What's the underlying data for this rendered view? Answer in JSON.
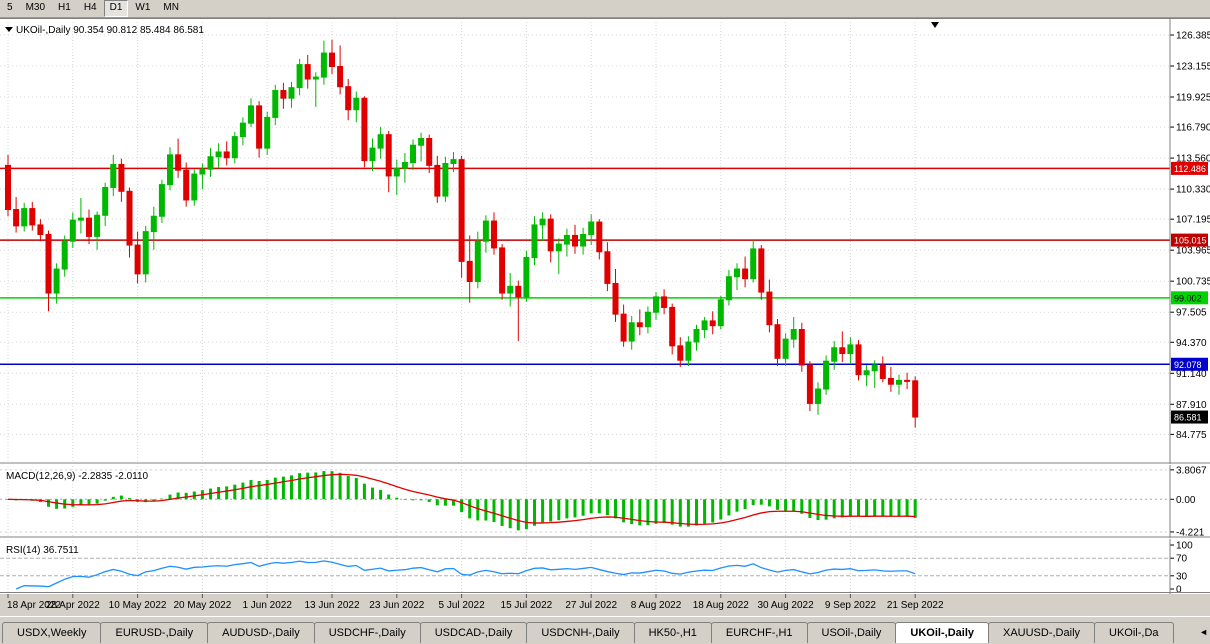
{
  "toolbar": {
    "active": "D1",
    "timeframes": [
      {
        "label": "5"
      },
      {
        "label": "M30"
      },
      {
        "label": "H1"
      },
      {
        "label": "H4"
      },
      {
        "label": "D1"
      },
      {
        "label": "W1"
      },
      {
        "label": "MN"
      }
    ]
  },
  "symbol_info": {
    "dropdown_icon": "down-triangle",
    "name": "UKOil-,Daily",
    "open": "90.354",
    "high": "90.812",
    "low": "85.484",
    "close": "86.581"
  },
  "chart_data": {
    "type": "candlestick",
    "title": "UKOil-,Daily",
    "y_axis_labels": [
      126.385,
      123.155,
      119.925,
      116.79,
      113.56,
      110.33,
      107.195,
      103.965,
      100.735,
      97.505,
      94.37,
      91.14,
      87.91,
      84.775
    ],
    "ylim": [
      82.7,
      127.7
    ],
    "grid": true,
    "x_ticks": [
      {
        "i": 0,
        "label": "18 Apr 2022"
      },
      {
        "i": 8,
        "label": "28 Apr 2022"
      },
      {
        "i": 16,
        "label": "10 May 2022"
      },
      {
        "i": 24,
        "label": "20 May 2022"
      },
      {
        "i": 32,
        "label": "1 Jun 2022"
      },
      {
        "i": 40,
        "label": "13 Jun 2022"
      },
      {
        "i": 48,
        "label": "23 Jun 2022"
      },
      {
        "i": 56,
        "label": "5 Jul 2022"
      },
      {
        "i": 64,
        "label": "15 Jul 2022"
      },
      {
        "i": 72,
        "label": "27 Jul 2022"
      },
      {
        "i": 80,
        "label": "8 Aug 2022"
      },
      {
        "i": 88,
        "label": "18 Aug 2022"
      },
      {
        "i": 96,
        "label": "30 Aug 2022"
      },
      {
        "i": 104,
        "label": "9 Sep 2022"
      },
      {
        "i": 112,
        "label": "21 Sep 2022"
      }
    ],
    "hlines": [
      {
        "price": 112.486,
        "label": "112.486",
        "color": "#e10000",
        "text_color": "#ffffff"
      },
      {
        "price": 105.015,
        "label": "105.015",
        "color": "#c00000",
        "text_color": "#ffffff"
      },
      {
        "price": 99.002,
        "label": "99.002",
        "color": "#00d400",
        "text_color": "#000000"
      },
      {
        "price": 92.078,
        "label": "92.078",
        "color": "#0000cc",
        "text_color": "#ffffff"
      }
    ],
    "current_price": {
      "value": 86.581,
      "label": "86.581",
      "bg": "#000000",
      "text_color": "#ffffff"
    },
    "colors": {
      "bull": "#00b800",
      "bear": "#e10000",
      "macd_hist": "#00b800",
      "macd_signal": "#e10000",
      "rsi": "#1e90ff",
      "grid": "#d8d8d8",
      "panel_bg": "#ffffff",
      "axis_bg": "#d4d0c8"
    },
    "candles": [
      [
        112.8,
        113.9,
        107.5,
        108.2
      ],
      [
        108.2,
        109.5,
        105.8,
        106.5
      ],
      [
        106.5,
        108.9,
        105.9,
        108.3
      ],
      [
        108.3,
        109.0,
        106.0,
        106.6
      ],
      [
        106.6,
        107.2,
        104.9,
        105.6
      ],
      [
        105.6,
        106.0,
        97.6,
        99.5
      ],
      [
        99.5,
        102.6,
        98.4,
        102.0
      ],
      [
        102.0,
        105.5,
        101.2,
        104.9
      ],
      [
        104.9,
        107.9,
        104.2,
        107.1
      ],
      [
        107.1,
        109.4,
        105.7,
        107.3
      ],
      [
        107.3,
        108.2,
        104.6,
        105.4
      ],
      [
        105.4,
        108.0,
        104.0,
        107.6
      ],
      [
        107.6,
        111.0,
        106.5,
        110.5
      ],
      [
        110.5,
        113.9,
        109.6,
        112.9
      ],
      [
        112.9,
        113.5,
        109.0,
        110.1
      ],
      [
        110.1,
        110.5,
        103.2,
        104.5
      ],
      [
        104.5,
        105.9,
        100.5,
        101.5
      ],
      [
        101.5,
        106.5,
        100.6,
        105.9
      ],
      [
        105.9,
        108.5,
        104.0,
        107.5
      ],
      [
        107.5,
        111.3,
        106.8,
        110.8
      ],
      [
        110.8,
        114.7,
        110.2,
        113.9
      ],
      [
        113.9,
        115.6,
        111.5,
        112.3
      ],
      [
        112.3,
        113.1,
        108.5,
        109.2
      ],
      [
        109.2,
        112.4,
        108.6,
        111.9
      ],
      [
        111.9,
        113.0,
        110.3,
        112.4
      ],
      [
        112.4,
        114.6,
        111.6,
        113.7
      ],
      [
        113.7,
        115.1,
        112.5,
        114.2
      ],
      [
        114.2,
        115.3,
        112.8,
        113.6
      ],
      [
        113.6,
        116.3,
        113.0,
        115.8
      ],
      [
        115.8,
        117.8,
        114.9,
        117.2
      ],
      [
        117.2,
        119.8,
        116.8,
        119.0
      ],
      [
        119.0,
        119.5,
        113.6,
        114.6
      ],
      [
        114.6,
        118.4,
        113.9,
        117.8
      ],
      [
        117.8,
        121.2,
        117.0,
        120.6
      ],
      [
        120.6,
        121.4,
        118.7,
        119.8
      ],
      [
        119.8,
        121.5,
        118.8,
        120.9
      ],
      [
        120.9,
        123.9,
        120.1,
        123.3
      ],
      [
        123.3,
        124.3,
        120.8,
        121.8
      ],
      [
        121.8,
        122.5,
        118.9,
        122.0
      ],
      [
        122.0,
        125.8,
        121.2,
        124.5
      ],
      [
        124.5,
        125.9,
        122.3,
        123.1
      ],
      [
        123.1,
        125.3,
        120.2,
        121.0
      ],
      [
        121.0,
        121.8,
        117.5,
        118.6
      ],
      [
        118.6,
        120.5,
        117.3,
        119.8
      ],
      [
        119.8,
        120.0,
        112.6,
        113.3
      ],
      [
        113.3,
        115.6,
        112.2,
        114.6
      ],
      [
        114.6,
        116.8,
        113.5,
        116.0
      ],
      [
        116.0,
        116.4,
        110.0,
        111.7
      ],
      [
        111.7,
        113.4,
        109.7,
        112.5
      ],
      [
        112.5,
        114.1,
        111.0,
        113.1
      ],
      [
        113.1,
        115.5,
        112.3,
        114.9
      ],
      [
        114.9,
        116.2,
        113.2,
        115.6
      ],
      [
        115.6,
        116.0,
        112.0,
        112.8
      ],
      [
        112.8,
        113.8,
        108.9,
        109.6
      ],
      [
        109.6,
        113.7,
        109.0,
        113.0
      ],
      [
        113.0,
        114.2,
        112.1,
        113.4
      ],
      [
        113.4,
        113.8,
        101.1,
        102.8
      ],
      [
        102.8,
        105.5,
        98.5,
        100.7
      ],
      [
        100.7,
        105.9,
        100.0,
        104.9
      ],
      [
        104.9,
        107.6,
        103.7,
        107.0
      ],
      [
        107.0,
        107.9,
        103.5,
        104.2
      ],
      [
        104.2,
        104.6,
        98.8,
        99.5
      ],
      [
        99.5,
        101.6,
        98.1,
        100.2
      ],
      [
        100.2,
        100.8,
        94.5,
        99.1
      ],
      [
        99.1,
        103.9,
        98.6,
        103.2
      ],
      [
        103.2,
        107.5,
        102.4,
        106.6
      ],
      [
        106.6,
        107.9,
        104.9,
        107.2
      ],
      [
        107.2,
        107.7,
        102.7,
        103.9
      ],
      [
        103.9,
        105.2,
        101.5,
        104.6
      ],
      [
        104.6,
        106.2,
        103.3,
        105.5
      ],
      [
        105.5,
        106.6,
        103.6,
        104.4
      ],
      [
        104.4,
        106.3,
        103.5,
        105.6
      ],
      [
        105.6,
        107.7,
        104.5,
        106.9
      ],
      [
        106.9,
        107.2,
        103.0,
        103.8
      ],
      [
        103.8,
        104.8,
        99.7,
        100.5
      ],
      [
        100.5,
        102.0,
        96.5,
        97.3
      ],
      [
        97.3,
        98.3,
        93.9,
        94.5
      ],
      [
        94.5,
        97.1,
        93.6,
        96.4
      ],
      [
        96.4,
        97.8,
        95.1,
        96.0
      ],
      [
        96.0,
        98.1,
        95.3,
        97.5
      ],
      [
        97.5,
        99.6,
        96.7,
        99.1
      ],
      [
        99.1,
        99.9,
        97.3,
        98.0
      ],
      [
        98.0,
        98.4,
        93.1,
        94.0
      ],
      [
        94.0,
        94.9,
        91.8,
        92.5
      ],
      [
        92.5,
        95.0,
        91.9,
        94.4
      ],
      [
        94.4,
        96.2,
        93.5,
        95.7
      ],
      [
        95.7,
        97.0,
        94.8,
        96.6
      ],
      [
        96.6,
        97.6,
        95.2,
        96.1
      ],
      [
        96.1,
        99.2,
        95.7,
        98.8
      ],
      [
        98.8,
        101.9,
        98.2,
        101.2
      ],
      [
        101.2,
        102.6,
        99.8,
        102.0
      ],
      [
        102.0,
        103.3,
        100.1,
        101.0
      ],
      [
        101.0,
        105.0,
        100.6,
        104.1
      ],
      [
        104.1,
        104.5,
        98.8,
        99.6
      ],
      [
        99.6,
        100.9,
        95.4,
        96.2
      ],
      [
        96.2,
        96.8,
        91.9,
        92.7
      ],
      [
        92.7,
        95.3,
        91.9,
        94.7
      ],
      [
        94.7,
        97.0,
        93.8,
        95.7
      ],
      [
        95.7,
        96.4,
        91.3,
        92.0
      ],
      [
        92.0,
        92.4,
        87.2,
        88.0
      ],
      [
        88.0,
        90.2,
        86.8,
        89.5
      ],
      [
        89.5,
        93.0,
        88.9,
        92.4
      ],
      [
        92.4,
        94.5,
        91.5,
        93.8
      ],
      [
        93.8,
        95.5,
        92.3,
        93.2
      ],
      [
        93.2,
        94.9,
        92.1,
        94.1
      ],
      [
        94.1,
        94.6,
        90.4,
        91.0
      ],
      [
        91.0,
        92.0,
        89.8,
        91.4
      ],
      [
        91.4,
        92.5,
        89.6,
        92.0
      ],
      [
        92.0,
        92.9,
        90.2,
        90.6
      ],
      [
        90.6,
        91.8,
        89.2,
        90.0
      ],
      [
        90.0,
        91.0,
        88.9,
        90.4
      ],
      [
        90.4,
        91.2,
        89.5,
        90.35
      ],
      [
        90.354,
        90.812,
        85.484,
        86.581
      ]
    ],
    "indicators": {
      "macd": {
        "label": "MACD(12,26,9)",
        "values": "-2.2835 -2.0110",
        "fast": 12,
        "slow": 26,
        "signal": 9,
        "axis": [
          {
            "value": 3.8067,
            "label": "3.8067"
          },
          {
            "value": 0,
            "label": "0.00"
          },
          {
            "value": -4.221,
            "label": "-4.221"
          }
        ]
      },
      "rsi": {
        "label": "RSI(14)",
        "value_text": "36.7511",
        "period": 14,
        "levels": [
          70,
          30
        ],
        "axis": [
          {
            "value": 100,
            "label": "100"
          },
          {
            "value": 70,
            "label": "70"
          },
          {
            "value": 30,
            "label": "30"
          },
          {
            "value": 0,
            "label": "0"
          }
        ]
      }
    }
  },
  "tab_bar": {
    "scroll_icon": "◄",
    "tabs": [
      {
        "label": "USDX,Weekly",
        "active": false
      },
      {
        "label": "EURUSD-,Daily",
        "active": false
      },
      {
        "label": "AUDUSD-,Daily",
        "active": false
      },
      {
        "label": "USDCHF-,Daily",
        "active": false
      },
      {
        "label": "USDCAD-,Daily",
        "active": false
      },
      {
        "label": "USDCNH-,Daily",
        "active": false
      },
      {
        "label": "HK50-,H1",
        "active": false
      },
      {
        "label": "EURCHF-,H1",
        "active": false
      },
      {
        "label": "USOil-,Daily",
        "active": false
      },
      {
        "label": "UKOil-,Daily",
        "active": true
      },
      {
        "label": "XAUUSD-,Daily",
        "active": false
      },
      {
        "label": "UKOil-,Da",
        "active": false
      }
    ]
  }
}
